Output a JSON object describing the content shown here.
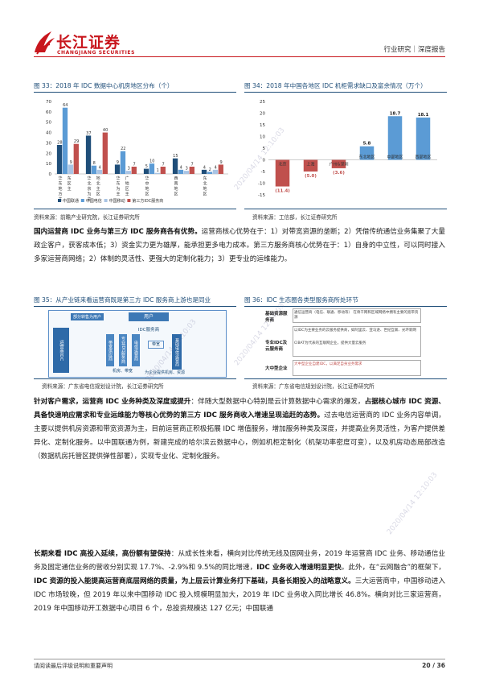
{
  "header": {
    "brand_cn": "长江证券",
    "brand_en": "CHANGJIANG SECURITIES",
    "right_text": "行业研究｜深度报告"
  },
  "fig33": {
    "title": "图 33：2018 年 IDC 数据中心机房地区分布（个）",
    "source": "资料来源：前瞻产业研究院，长江证券研究所",
    "chart_data": {
      "type": "bar",
      "categories": [
        "华东地区（上海方主）",
        "华北地区（北京为主）",
        "华南地区（广东为主）",
        "华中地区",
        "西南地区",
        "东北地区"
      ],
      "category_lines": [
        [
          "华",
          "东",
          "地",
          "方",
          "主"
        ],
        [
          "华",
          "北",
          "京",
          "为",
          "主"
        ],
        [
          "华",
          "东",
          "为",
          "主"
        ],
        [
          "华",
          "中",
          "地",
          "区"
        ],
        [
          "西",
          "南",
          "地",
          "区"
        ],
        [
          "东",
          "北",
          "地",
          "区"
        ]
      ],
      "category_sub": [
        [
          "东",
          "区",
          "主"
        ],
        [
          "地",
          "北",
          "主",
          "区"
        ],
        [
          "广",
          "地",
          "区",
          "主"
        ],
        [],
        [],
        []
      ],
      "ylim": [
        0,
        70
      ],
      "yticks": [
        0,
        10,
        20,
        30,
        40,
        50,
        60,
        70
      ],
      "series": [
        {
          "name": "中国联通",
          "color": "#1f4e79",
          "values": [
            28,
            37,
            9,
            5,
            15,
            4
          ]
        },
        {
          "name": "中国电信",
          "color": "#5b9bd5",
          "values": [
            64,
            8,
            22,
            10,
            4,
            2
          ]
        },
        {
          "name": "中国移动",
          "color": "#a9c4e4",
          "values": [
            9,
            4,
            3,
            1,
            3,
            4
          ]
        },
        {
          "name": "第三方IDC服务商",
          "color": "#c0504d",
          "values": [
            29,
            40,
            7,
            7,
            7,
            9
          ]
        }
      ],
      "bar_labels": [
        [
          "28",
          "64",
          "9",
          "29"
        ],
        [
          "37",
          "8",
          "4",
          "40"
        ],
        [
          "9",
          "22",
          "3",
          "7"
        ],
        [
          "5",
          "10",
          "1",
          "7"
        ],
        [
          "15",
          "4",
          "3",
          "7"
        ],
        [
          "4",
          "2",
          "4",
          "9"
        ]
      ],
      "legend": "bottom"
    }
  },
  "fig34": {
    "title": "图 34：2018 年中国各地区 IDC 机柜需求缺口及富余情况（万个）",
    "source": "资料来源：工信部，长江证券研究所",
    "chart_data": {
      "type": "bar",
      "categories": [
        "北京",
        "上海",
        "广州&深圳",
        "东北地区",
        "中部地区",
        "西部地区"
      ],
      "values": [
        -11.4,
        -5.0,
        -3.6,
        5.8,
        18.7,
        18.1
      ],
      "value_labels": [
        "(11.4)",
        "(5.0)",
        "(3.6)",
        "5.8",
        "18.7",
        "18.1"
      ],
      "ylim": [
        -15,
        25
      ],
      "yticks": [
        25,
        20,
        15,
        10,
        5,
        0,
        -5,
        -10,
        -15
      ]
    }
  },
  "para1": {
    "bold": "国内运营商 IDC 业务与第三方 IDC 服务商各有优势。",
    "text": "运营商核心优势在于：1）对带宽资源的垄断；2）凭借传统通信业务集聚了大量政企客户，获客成本低；3）资金实力更为雄厚，能承担更多电力成本。第三方服务商核心优势在于：1）自身的中立性，可以同时接入多家运营商网络；2）体制的灵活性、更强大的定制化能力；3）更专业的运维能力。"
  },
  "fig35": {
    "title": "图 35：从产业链来看运营商既是第三方 IDC 服务商上游也是同业",
    "source": "资料来源：广东省电信规划设计院，长江证券研究所",
    "labels": {
      "top": "用户",
      "top_left": "部分转售为用户",
      "idc": "IDC服务商",
      "left": "运营商IDC",
      "col1": "带宽供应商",
      "col2": "专业IDC服务商",
      "col3": "电信运营商",
      "col4": "基础电信运营商",
      "bottom1": "机房、带宽",
      "bottom2": "为企业提供机房、资源",
      "mid": "带宽"
    }
  },
  "fig36": {
    "title": "图 36：IDC 生态圈各类型服务商所处环节",
    "source": "资料来源：广东省电信规划设计院，长江证券研究所",
    "labels": {
      "row1": "基础资源服务商",
      "row1_desc": "通信运营商（电信、联通、移动等）  在骨干网和区域网络中拥有主要的宽带资源",
      "row2": "专业IDC及云服务商",
      "row2_desc": "以IDC为主要业务的云服务提供商，如阿里云、亚马逊、世纪互联、光环新网",
      "row2_desc2": "CIBAT为代表的互联网企业，提供大量云服务",
      "row3": "大中型企业",
      "row3_desc": "大中型企业自建IDC，以满足自身业务需求"
    }
  },
  "para2": {
    "bold_a": "针对客户需求，运营商 IDC 业务种类及深度或提升",
    "text_a": "：伴随大型数据中心特别是云计算数据中心需求的爆发，",
    "bold_b": "占据核心城市 IDC 资源、具备快速响应需求和专业运维能力等核心优势的第三方 IDC 服务商收入增速呈现追赶的态势。",
    "text_b": "过去电信运营商的 IDC 业务内容单调，主要以提供机房资源和带宽资源为主，目前运营商正积极拓展 IDC 增值服务，增加服务种类及深度，并提高业务灵活性，为客户提供差异化、定制化服务。以中国联通为例，新建完成的哈尔滨云数据中心，例如机柜定制化（机架功率密度可变），以及机房动态局部改造（数据机房托管区提供弹性部署），实现专业化、定制化服务。"
  },
  "para3": {
    "bold_a": "长期来看 IDC 高投入延续，高份额有望保持",
    "text_a": "：从成长性来看，横向对比传统无线及固网业务，2019 年运营商 IDC 业务、移动通信业务及固定通信业务的营收分别实现 17.7%、-2.9%和 9.5%的同比增速，",
    "bold_b": "IDC 业务收入增速明显更快",
    "text_b": "。此外，在“云网融合”的框架下，",
    "bold_c": "IDC 资源的投入能提高运营商底层网络的质量，为上层云计算业务打下基础，具备长期投入的战略意义。",
    "text_c": "三大运营商中，中国移动进入 IDC 市场较晚，但 2019 年以来中国移动 IDC 投入规模明显加大，2019 年 IDC 业务收入同比增长 46.8%。横向对比三家运营商，2019 年中国移动开工数据中心项目 6 个，总投资规模达 127 亿元；中国联通"
  },
  "footer": {
    "left": "请阅读最后评级说明和重要声明",
    "right": "20 / 36"
  },
  "watermark": "2020/04/14 12:10:03",
  "colors": {
    "brand_red": "#c8161d",
    "title_blue": "#1f4e79",
    "bar_blue": "#5b9bd5",
    "neg_red": "#c0504d"
  }
}
